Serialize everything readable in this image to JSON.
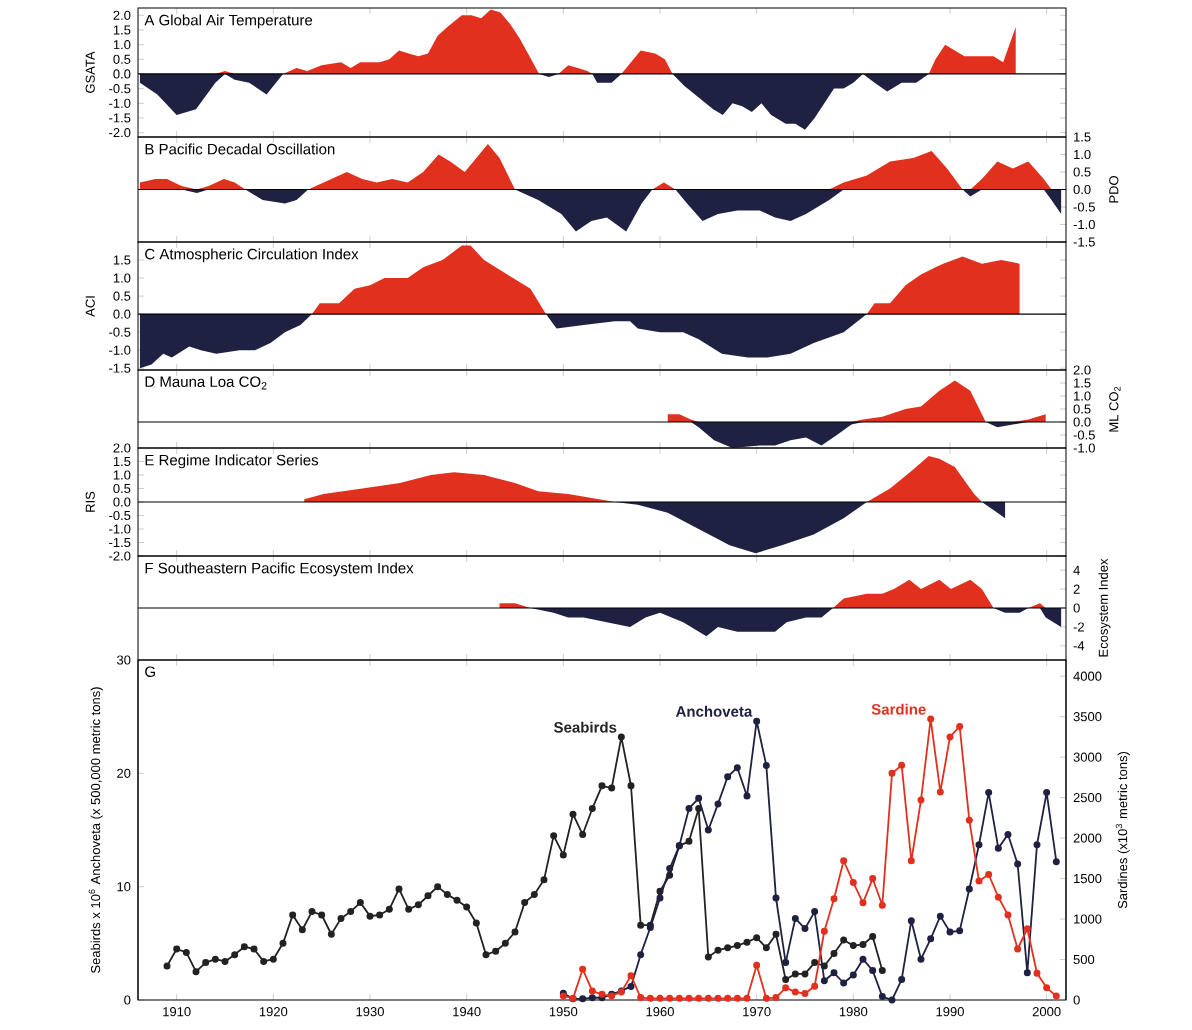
{
  "chart_data": [
    {
      "type": "area",
      "title": "A Global Air Temperature",
      "ylabel": "GSATA",
      "xlim": [
        1906,
        2002
      ],
      "xticks": [
        1910,
        1920,
        1930,
        1940,
        1950,
        1960,
        1970,
        1980,
        1990,
        2000
      ],
      "ylim": [
        -2.15,
        2.25
      ],
      "yticks": [
        {
          "value": -2,
          "label": "-2.0"
        },
        -1.5,
        {
          "value": -1,
          "label": "-1.0"
        },
        -0.5,
        {
          "value": 0,
          "label": "0.0"
        },
        0.5,
        {
          "value": 1,
          "label": "1.0"
        },
        1.5,
        {
          "value": 2,
          "label": "2.0"
        }
      ],
      "tick_labels": "y",
      "ref_lines": [
        {
          "axis": "y",
          "value": 0
        }
      ],
      "x": [
        1906.2,
        1908,
        1910,
        1912,
        1914,
        1915,
        1916,
        1917.5,
        1919.3,
        1921,
        1922.4,
        1923.5,
        1925,
        1927,
        1928,
        1929,
        1931,
        1932,
        1933,
        1934,
        1935,
        1936,
        1937,
        1938,
        1939.5,
        1940.5,
        1941.5,
        1942.5,
        1943.5,
        1944.5,
        1945.5,
        1946.5,
        1947.5,
        1948.5,
        1949.5,
        1950.5,
        1951.5,
        1952.5,
        1953,
        1953.5,
        1955,
        1956,
        1957,
        1958,
        1959.5,
        1960.5,
        1961.3,
        1962.5,
        1964,
        1965.5,
        1966.5,
        1967.5,
        1968.5,
        1969.5,
        1970.5,
        1971.5,
        1973,
        1974,
        1975,
        1976,
        1977,
        1978,
        1979,
        1980,
        1981,
        1982.2,
        1983.5,
        1985,
        1986.5,
        1987.8,
        1988.5,
        1989.5,
        1990.5,
        1991.5,
        1993,
        1994.5,
        1995.5,
        1996.8
      ],
      "series": [
        {
          "color": "#e2301f",
          "values": [
            0,
            0,
            0,
            0,
            0,
            0.1,
            0,
            0,
            0,
            0,
            0.2,
            0.1,
            0.3,
            0.4,
            0.2,
            0.4,
            0.4,
            0.5,
            0.8,
            0.7,
            0.6,
            0.7,
            1.3,
            1.6,
            2.0,
            2.0,
            1.9,
            2.2,
            2.1,
            1.7,
            1.2,
            0.6,
            0,
            0,
            0,
            0.3,
            0.2,
            0.1,
            0,
            0,
            0,
            0,
            0.4,
            0.8,
            0.7,
            0.5,
            0,
            0,
            0,
            0,
            0,
            0,
            0,
            0,
            0,
            0,
            0,
            0,
            0,
            0,
            0,
            0,
            0,
            0,
            0,
            0,
            0,
            0,
            0,
            0,
            0.5,
            1.0,
            0.8,
            0.6,
            0.6,
            0.6,
            0.4,
            1.6
          ]
        },
        {
          "color": "#1f2142",
          "values": [
            -0.3,
            -0.7,
            -1.4,
            -1.2,
            -0.3,
            0,
            -0.2,
            -0.3,
            -0.7,
            0,
            0,
            0,
            0,
            0,
            0,
            0,
            0,
            0,
            0,
            0,
            0,
            0,
            0,
            0,
            0,
            0,
            0,
            0,
            0,
            0,
            0,
            0,
            0,
            -0.1,
            0,
            0,
            0,
            0,
            0,
            -0.3,
            -0.3,
            0,
            0,
            0,
            0,
            0,
            0,
            -0.4,
            -0.8,
            -1.2,
            -1.4,
            -1.0,
            -1.1,
            -1.3,
            -1.0,
            -1.4,
            -1.7,
            -1.7,
            -1.9,
            -1.5,
            -1.0,
            -0.5,
            -0.5,
            -0.3,
            0,
            -0.3,
            -0.6,
            -0.3,
            -0.3,
            0,
            0,
            0,
            0,
            0,
            0,
            0,
            0,
            0
          ]
        }
      ]
    },
    {
      "type": "area",
      "title": "B Pacific Decadal Oscillation",
      "y2label": "PDO",
      "xlim": [
        1906,
        2002
      ],
      "xticks": [
        1910,
        1920,
        1930,
        1940,
        1950,
        1960,
        1970,
        1980,
        1990,
        2000
      ],
      "y2lim": [
        -1.5,
        1.5
      ],
      "y2ticks": [
        -1.5,
        {
          "value": -1,
          "label": "-1.0"
        },
        -0.5,
        {
          "value": 0,
          "label": "0.0"
        },
        0.5,
        {
          "value": 1,
          "label": "1.0"
        },
        1.5
      ],
      "tick_labels": "y",
      "ref_lines": [
        {
          "axis": "y2",
          "value": 0
        }
      ],
      "x": [
        1906.2,
        1907.8,
        1909,
        1910.5,
        1912.1,
        1913.3,
        1914.9,
        1916,
        1917.1,
        1918.9,
        1921.2,
        1922.4,
        1923.6,
        1925.2,
        1927.6,
        1929.2,
        1930.7,
        1932.3,
        1933.9,
        1935.5,
        1937.1,
        1938.3,
        1939.8,
        1941,
        1942.2,
        1943.4,
        1945,
        1947.4,
        1949.8,
        1951.3,
        1952.9,
        1954.5,
        1956.5,
        1958.1,
        1959.2,
        1960.4,
        1961.6,
        1962.8,
        1964.4,
        1966,
        1968,
        1970.3,
        1971.9,
        1973.5,
        1975.1,
        1977.5,
        1979,
        1981.4,
        1983.8,
        1986.2,
        1988.1,
        1989.7,
        1991.3,
        1992.1,
        1993.3,
        1994.9,
        1996.5,
        1998.1,
        1999.7,
        2000.5,
        2001.5
      ],
      "series": [
        {
          "color": "#e2301f",
          "axis": "y2",
          "values": [
            0.2,
            0.3,
            0.3,
            0.1,
            0,
            0.1,
            0.3,
            0.2,
            0,
            0,
            0,
            0,
            0,
            0.2,
            0.5,
            0.3,
            0.2,
            0.3,
            0.2,
            0.5,
            1.0,
            0.8,
            0.5,
            0.9,
            1.3,
            0.9,
            0,
            0,
            0,
            0,
            0,
            0,
            0,
            0,
            0,
            0.2,
            0,
            0,
            0,
            0,
            0,
            0,
            0,
            0,
            0,
            0,
            0.2,
            0.4,
            0.8,
            0.9,
            1.1,
            0.6,
            0,
            0,
            0.3,
            0.8,
            0.6,
            0.8,
            0.3,
            0,
            0
          ]
        },
        {
          "color": "#1f2142",
          "axis": "y2",
          "values": [
            0,
            0,
            0,
            0,
            -0.1,
            0,
            0,
            0,
            0,
            -0.3,
            -0.4,
            -0.3,
            0,
            0,
            0,
            0,
            0,
            0,
            0,
            0,
            0,
            0,
            0,
            0,
            0,
            0,
            0,
            -0.3,
            -0.7,
            -1.2,
            -0.9,
            -0.8,
            -1.2,
            -0.4,
            0,
            0,
            0,
            -0.4,
            -0.9,
            -0.7,
            -0.6,
            -0.6,
            -0.8,
            -0.9,
            -0.7,
            -0.3,
            0,
            0,
            0,
            0,
            0,
            0,
            0,
            -0.2,
            0,
            0,
            0,
            0,
            0,
            -0.3,
            -0.7
          ]
        }
      ]
    },
    {
      "type": "area",
      "title": "C Atmospheric Circulation Index",
      "ylabel": "ACI",
      "xlim": [
        1906,
        2002
      ],
      "xticks": [
        1910,
        1920,
        1930,
        1940,
        1950,
        1960,
        1970,
        1980,
        1990,
        2000
      ],
      "ylim": [
        -1.55,
        2.0
      ],
      "yticks": [
        -1.5,
        {
          "value": -1,
          "label": "-1.0"
        },
        -0.5,
        {
          "value": 0,
          "label": "0.0"
        },
        0.5,
        {
          "value": 1,
          "label": "1.0"
        },
        1.5
      ],
      "tick_labels": "y",
      "ref_lines": [
        {
          "axis": "y",
          "value": 0
        }
      ],
      "x": [
        1906.2,
        1907.4,
        1908.6,
        1909.5,
        1911.3,
        1912.5,
        1914.1,
        1916.5,
        1918.1,
        1919.7,
        1921.2,
        1922.8,
        1924,
        1924.8,
        1926.8,
        1928.4,
        1930,
        1931.5,
        1933.9,
        1935.5,
        1937.5,
        1939.5,
        1940.4,
        1941.8,
        1944.2,
        1946.6,
        1948.2,
        1949.3,
        1952.1,
        1955.3,
        1956.9,
        1957.7,
        1960,
        1962.4,
        1964,
        1966.4,
        1969.1,
        1971.1,
        1973.5,
        1975.9,
        1979,
        1981.4,
        1982.2,
        1983.8,
        1985.4,
        1987,
        1988.5,
        1989.3,
        1991.3,
        1993.3,
        1995.3,
        1997.2
      ],
      "series": [
        {
          "color": "#e2301f",
          "values": [
            0,
            0,
            0,
            0,
            0,
            0,
            0,
            0,
            0,
            0,
            0,
            0,
            0,
            0.3,
            0.3,
            0.7,
            0.8,
            1.0,
            1.0,
            1.3,
            1.5,
            1.9,
            1.9,
            1.5,
            1.1,
            0.7,
            0,
            0,
            0,
            0,
            0,
            0,
            0,
            0,
            0,
            0,
            0,
            0,
            0,
            0,
            0,
            0,
            0.3,
            0.3,
            0.8,
            1.1,
            1.3,
            1.4,
            1.6,
            1.4,
            1.5,
            1.4
          ]
        },
        {
          "color": "#1f2142",
          "values": [
            -1.5,
            -1.4,
            -1.1,
            -1.2,
            -0.9,
            -1.0,
            -1.1,
            -1.0,
            -1.0,
            -0.8,
            -0.5,
            -0.3,
            0,
            0,
            0,
            0,
            0,
            0,
            0,
            0,
            0,
            0,
            0,
            0,
            0,
            0,
            0,
            -0.4,
            -0.3,
            -0.2,
            -0.2,
            -0.4,
            -0.5,
            -0.5,
            -0.7,
            -1.1,
            -1.2,
            -1.2,
            -1.1,
            -0.8,
            -0.5,
            0,
            0,
            0,
            0,
            0,
            0,
            0,
            0,
            0,
            0,
            0
          ]
        }
      ]
    },
    {
      "type": "area",
      "title": "D Mauna Loa CO$_{2}$",
      "y2label": "ML CO$_{2}$",
      "xlim": [
        1906,
        2002
      ],
      "xticks": [
        1910,
        1920,
        1930,
        1940,
        1950,
        1960,
        1970,
        1980,
        1990,
        2000
      ],
      "y2lim": [
        -1,
        2
      ],
      "y2ticks": [
        {
          "value": -1,
          "label": "-1.0"
        },
        -0.5,
        {
          "value": 0,
          "label": "0.0"
        },
        0.5,
        {
          "value": 1,
          "label": "1.0"
        },
        1.5,
        {
          "value": 2,
          "label": "2.0"
        }
      ],
      "tick_labels": "y",
      "ref_lines": [
        {
          "axis": "y2",
          "value": 0
        }
      ],
      "x": [
        1960.8,
        1962,
        1963.2,
        1964,
        1965.6,
        1967.5,
        1970.3,
        1971.9,
        1973.5,
        1975.1,
        1976.7,
        1978.3,
        1979.8,
        1981,
        1983,
        1985.4,
        1987,
        1988.9,
        1990.5,
        1992.1,
        1993.7,
        1994.9,
        1996.5,
        1998.1,
        1999.9
      ],
      "series": [
        {
          "color": "#e2301f",
          "axis": "y2",
          "values": [
            0.3,
            0.3,
            0.1,
            0,
            0,
            0,
            0,
            0,
            0,
            0,
            0,
            0,
            0,
            0.1,
            0.2,
            0.5,
            0.6,
            1.2,
            1.6,
            1.2,
            0,
            0,
            0,
            0.1,
            0.3
          ]
        },
        {
          "color": "#1f2142",
          "axis": "y2",
          "values": [
            0,
            0,
            0,
            -0.2,
            -0.7,
            -1.0,
            -0.9,
            -0.9,
            -0.7,
            -0.6,
            -0.9,
            -0.5,
            -0.1,
            0,
            0,
            0,
            0,
            0,
            0,
            0,
            0,
            -0.2,
            -0.1,
            0,
            0
          ]
        }
      ]
    },
    {
      "type": "area",
      "title": "E Regime Indicator Series",
      "ylabel": "RIS",
      "xlim": [
        1906,
        2002
      ],
      "xticks": [
        1910,
        1920,
        1930,
        1940,
        1950,
        1960,
        1970,
        1980,
        1990,
        2000
      ],
      "ylim": [
        -2,
        2
      ],
      "yticks": [
        {
          "value": -2,
          "label": "-2.0"
        },
        -1.5,
        {
          "value": -1,
          "label": "-1.0"
        },
        -0.5,
        {
          "value": 0,
          "label": "0.0"
        },
        0.5,
        {
          "value": 1,
          "label": "1.0"
        },
        1.5,
        {
          "value": 2,
          "label": "2.0"
        }
      ],
      "tick_labels": "y",
      "ref_lines": [
        {
          "axis": "y",
          "value": 0
        }
      ],
      "x": [
        1923.2,
        1925.2,
        1929.2,
        1933.1,
        1936.3,
        1938.7,
        1941.8,
        1945,
        1947.4,
        1950.5,
        1953.7,
        1955.3,
        1957.7,
        1960.8,
        1964,
        1967.2,
        1969.9,
        1972.6,
        1975.9,
        1979,
        1981.4,
        1983.8,
        1986.2,
        1987.8,
        1988.9,
        1990.5,
        1992.5,
        1993.3,
        1994.5,
        1995.7
      ],
      "series": [
        {
          "color": "#e2301f",
          "values": [
            0.1,
            0.3,
            0.5,
            0.7,
            1.0,
            1.1,
            1.0,
            0.7,
            0.4,
            0.3,
            0.1,
            0,
            0,
            0,
            0,
            0,
            0,
            0,
            0,
            0,
            0,
            0.5,
            1.2,
            1.7,
            1.6,
            1.3,
            0.3,
            0,
            0,
            0
          ]
        },
        {
          "color": "#1f2142",
          "values": [
            0,
            0,
            0,
            0,
            0,
            0,
            0,
            0,
            0,
            0,
            0,
            0,
            -0.1,
            -0.4,
            -1.0,
            -1.6,
            -1.9,
            -1.6,
            -1.2,
            -0.6,
            0,
            0,
            0,
            0,
            0,
            0,
            0,
            0,
            -0.3,
            -0.6
          ]
        }
      ]
    },
    {
      "type": "area",
      "title": "F Southeastern Pacific Ecosystem Index",
      "y2label": "Ecosystem Index",
      "xlim": [
        1906,
        2002
      ],
      "xticks": [
        1910,
        1920,
        1930,
        1940,
        1950,
        1960,
        1970,
        1980,
        1990,
        2000
      ],
      "y2lim": [
        -5.5,
        5.5
      ],
      "y2ticks": [
        -4,
        -2,
        0,
        2,
        4
      ],
      "tick_labels": "y",
      "ref_lines": [
        {
          "axis": "y2",
          "value": 0
        }
      ],
      "x": [
        1943.4,
        1945,
        1946.6,
        1949,
        1950.5,
        1952.1,
        1954.5,
        1956.9,
        1958.5,
        1960,
        1962.4,
        1964.8,
        1966,
        1968,
        1970.3,
        1971.9,
        1973.1,
        1975.1,
        1976.7,
        1977.9,
        1979,
        1981.4,
        1983,
        1984.2,
        1985.8,
        1987,
        1988.9,
        1990.1,
        1992.1,
        1993.3,
        1994.5,
        1995.7,
        1997.2,
        1998.1,
        1999.3,
        1999.9,
        2001.5
      ],
      "series": [
        {
          "color": "#e2301f",
          "axis": "y2",
          "values": [
            0.5,
            0.5,
            0,
            0,
            0,
            0,
            0,
            0,
            0,
            0,
            0,
            0,
            0,
            0,
            0,
            0,
            0,
            0,
            0,
            0,
            1,
            1.5,
            1.5,
            2,
            3,
            2,
            3,
            2,
            3,
            2,
            0,
            0,
            0,
            0,
            0.5,
            0,
            0
          ]
        },
        {
          "color": "#1f2142",
          "axis": "y2",
          "values": [
            0,
            0,
            0,
            -0.5,
            -1,
            -1,
            -1.5,
            -2,
            -1,
            -0.5,
            -1.5,
            -3,
            -2,
            -2.5,
            -2.5,
            -2.5,
            -1.5,
            -1,
            -1,
            0,
            0,
            0,
            0,
            0,
            0,
            0,
            0,
            0,
            0,
            0,
            0,
            -0.5,
            -0.5,
            0,
            0,
            -1,
            -2
          ]
        }
      ]
    },
    {
      "type": "line",
      "title": "G",
      "ylabel": "Seabirds x 10$^{6}$ Anchoveta (x 500,000 metric tons)",
      "y2label": "Sardines (x10$^{3}$ metric tons)",
      "xlim": [
        1906,
        2002
      ],
      "xticks": [
        1910,
        1920,
        1930,
        1940,
        1950,
        1960,
        1970,
        1980,
        1990,
        2000
      ],
      "ylim": [
        0,
        30
      ],
      "yticks": [
        0,
        10,
        20,
        30
      ],
      "y2lim": [
        0,
        4200
      ],
      "y2ticks": [
        0,
        500,
        1000,
        1500,
        2000,
        2500,
        3000,
        3500,
        4000
      ],
      "marker": "circle",
      "series": [
        {
          "name": "Seabirds",
          "color": "#222222",
          "x": [
            1909,
            1910,
            1911,
            1912,
            1913,
            1914,
            1915,
            1916,
            1917,
            1918,
            1919,
            1920,
            1921,
            1922,
            1923,
            1924,
            1925,
            1926,
            1927,
            1928,
            1929,
            1930,
            1931,
            1932,
            1933,
            1934,
            1935,
            1936,
            1937,
            1938,
            1939,
            1940,
            1941,
            1942,
            1943,
            1944,
            1945,
            1946,
            1947,
            1948,
            1949,
            1950,
            1951,
            1952,
            1953,
            1954,
            1955,
            1956,
            1957,
            1958,
            1959,
            1960,
            1961,
            1962,
            1963,
            1964,
            1965,
            1966,
            1967,
            1968,
            1969,
            1970,
            1971,
            1972,
            1973,
            1974,
            1975,
            1976,
            1977,
            1978,
            1979,
            1980,
            1981,
            1982,
            1983
          ],
          "values": [
            3.0,
            4.5,
            4.2,
            2.5,
            3.3,
            3.6,
            3.4,
            4.0,
            4.7,
            4.5,
            3.4,
            3.6,
            5.0,
            7.5,
            6.2,
            7.8,
            7.5,
            5.8,
            7.2,
            7.8,
            8.6,
            7.4,
            7.5,
            8.0,
            9.8,
            8.0,
            8.4,
            9.2,
            10.0,
            9.3,
            8.8,
            8.2,
            6.8,
            4.0,
            4.3,
            5.0,
            6.0,
            8.6,
            9.3,
            10.6,
            14.5,
            12.8,
            16.4,
            14.6,
            16.9,
            18.9,
            18.7,
            23.2,
            18.9,
            6.6,
            6.6,
            9.6,
            11.0,
            13.6,
            14.0,
            16.9,
            3.8,
            4.4,
            4.6,
            4.8,
            5.1,
            5.5,
            4.6,
            5.8,
            1.8,
            2.3,
            2.3,
            3.3,
            3.0,
            4.1,
            5.3,
            4.8,
            4.9,
            5.6,
            2.6
          ]
        },
        {
          "name": "Anchoveta",
          "color": "#1f2142",
          "x": [
            1950,
            1951,
            1952,
            1953,
            1954,
            1955,
            1956,
            1957,
            1958,
            1959,
            1960,
            1961,
            1962,
            1963,
            1964,
            1965,
            1966,
            1967,
            1968,
            1969,
            1970,
            1971,
            1972,
            1973,
            1974,
            1975,
            1976,
            1977,
            1978,
            1979,
            1980,
            1981,
            1982,
            1983,
            1984,
            1985,
            1986,
            1987,
            1988,
            1989,
            1990,
            1991,
            1992,
            1993,
            1994,
            1995,
            1996,
            1997,
            1998,
            1999,
            2000,
            2001
          ],
          "values": [
            0.6,
            0.1,
            0.1,
            0.2,
            0.2,
            0.5,
            0.8,
            1.2,
            4.0,
            6.4,
            9.0,
            11.6,
            13.6,
            16.9,
            17.8,
            15.0,
            17.3,
            19.7,
            20.5,
            18.0,
            24.6,
            20.7,
            9.0,
            3.3,
            7.2,
            6.3,
            7.8,
            1.7,
            2.4,
            1.5,
            2.2,
            3.6,
            2.6,
            0.3,
            0.0,
            1.8,
            7.0,
            3.6,
            5.4,
            7.4,
            6.0,
            6.1,
            9.8,
            13.7,
            18.3,
            13.4,
            14.6,
            12.0,
            2.4,
            13.7,
            18.3,
            12.2
          ]
        },
        {
          "name": "Sardine",
          "color": "#e2301f",
          "axis": "y2",
          "x": [
            1950,
            1951,
            1952,
            1953,
            1954,
            1955,
            1956,
            1957,
            1958,
            1959,
            1960,
            1961,
            1962,
            1963,
            1964,
            1965,
            1966,
            1967,
            1968,
            1969,
            1970,
            1971,
            1972,
            1973,
            1974,
            1975,
            1976,
            1977,
            1978,
            1979,
            1980,
            1981,
            1982,
            1983,
            1984,
            1985,
            1986,
            1987,
            1988,
            1989,
            1990,
            1991,
            1992,
            1993,
            1994,
            1995,
            1996,
            1997,
            1998,
            1999,
            2000,
            2001
          ],
          "values": [
            50,
            20,
            380,
            110,
            70,
            50,
            100,
            300,
            30,
            20,
            20,
            20,
            20,
            20,
            20,
            20,
            20,
            20,
            20,
            20,
            430,
            20,
            30,
            150,
            100,
            80,
            170,
            850,
            1250,
            1720,
            1450,
            1200,
            1500,
            1170,
            2800,
            2900,
            1720,
            2470,
            3470,
            2570,
            3250,
            3380,
            2220,
            1470,
            1550,
            1270,
            1050,
            630,
            880,
            330,
            150,
            50
          ]
        }
      ]
    }
  ]
}
